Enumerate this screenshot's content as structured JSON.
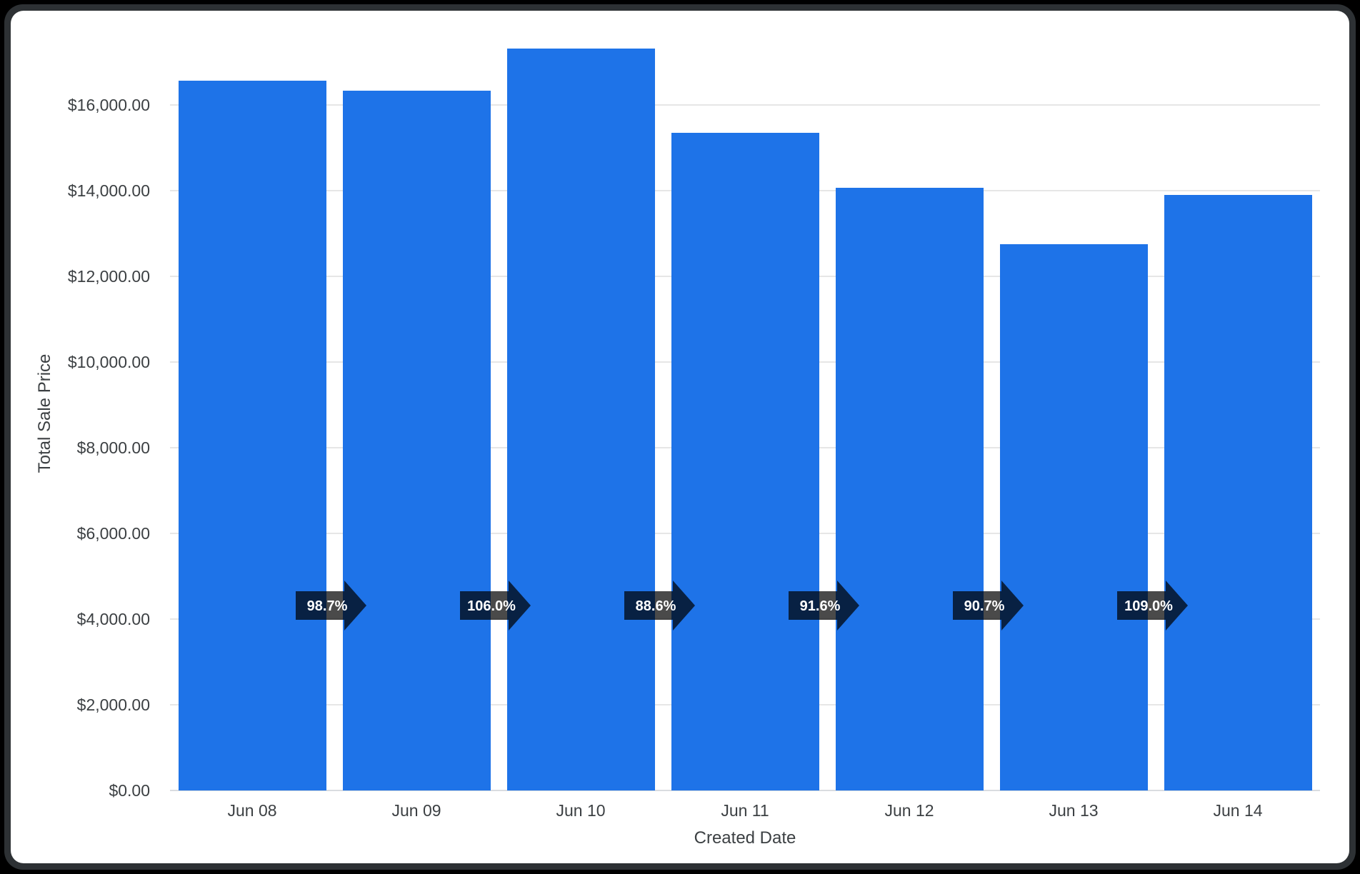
{
  "chart_data": {
    "type": "bar",
    "title": "",
    "xlabel": "Created Date",
    "ylabel": "Total Sale Price",
    "categories": [
      "Jun 08",
      "Jun 09",
      "Jun 10",
      "Jun 11",
      "Jun 12",
      "Jun 13",
      "Jun 14"
    ],
    "values": [
      16560,
      16340,
      17320,
      15350,
      14060,
      12750,
      13900
    ],
    "value_unit": "USD",
    "period_over_period_labels": [
      "98.7%",
      "106.0%",
      "88.6%",
      "91.6%",
      "90.7%",
      "109.0%"
    ],
    "y_tick_labels": [
      "$0.00",
      "$2,000.00",
      "$4,000.00",
      "$6,000.00",
      "$8,000.00",
      "$10,000.00",
      "$12,000.00",
      "$14,000.00",
      "$16,000.00"
    ],
    "ylim": [
      0,
      18000
    ],
    "y_tick_step": 2000,
    "grid": true,
    "legend": false,
    "colors": {
      "bar": "#1e73e8",
      "grid_line": "#e6e6e6",
      "axis_line": "#dadce0",
      "tick_label": "#3c4043",
      "axis_title": "#3c4043",
      "arrow_fill": "rgba(0,0,0,0.71)",
      "arrow_text": "#ffffff",
      "frame_border": "#2d3134",
      "page_background": "#000000",
      "chart_background": "#ffffff"
    }
  }
}
